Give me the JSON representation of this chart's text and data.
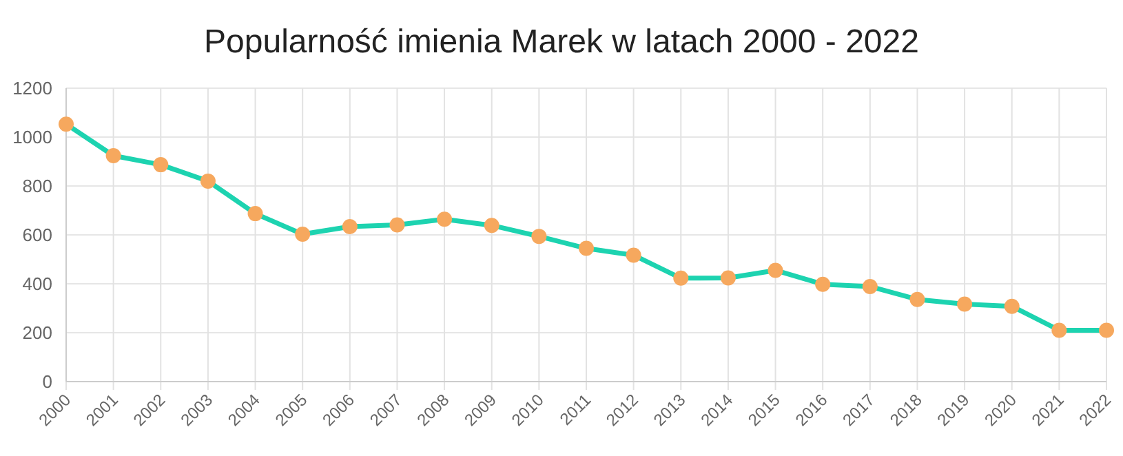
{
  "chart_data": {
    "type": "line",
    "title": "Popularność imienia Marek w latach 2000 - 2022",
    "categories": [
      "2000",
      "2001",
      "2002",
      "2003",
      "2004",
      "2005",
      "2006",
      "2007",
      "2008",
      "2009",
      "2010",
      "2011",
      "2012",
      "2013",
      "2014",
      "2015",
      "2016",
      "2017",
      "2018",
      "2019",
      "2020",
      "2021",
      "2022"
    ],
    "series": [
      {
        "color": "#1dd3b0",
        "values": [
          1053,
          924,
          887,
          820,
          687,
          603,
          634,
          641,
          664,
          639,
          594,
          545,
          517,
          423,
          424,
          455,
          398,
          389,
          336,
          317,
          308,
          210,
          210
        ],
        "colors": [
          "#f6a85e",
          "#f6a85e",
          "#f6a85e",
          "#f6a85e",
          "#f6a85e",
          "#f6a85e",
          "#f6a85e",
          "#f6a85e",
          "#f6a85e",
          "#f6a85e",
          "#f6a85e",
          "#f6a85e",
          "#f6a85e",
          "#f6a85e",
          "#f6a85e",
          "#f6a85e",
          "#f6a85e",
          "#f6a85e",
          "#f6a85e",
          "#f6a85e",
          "#f6a85e",
          "#f6a85e",
          "#f6a85e"
        ]
      }
    ],
    "ylim": [
      0,
      1200
    ],
    "yticks": [
      0,
      200,
      400,
      600,
      800,
      1000,
      1200
    ],
    "grid": true,
    "marker": "circle",
    "line_style": "solid"
  }
}
